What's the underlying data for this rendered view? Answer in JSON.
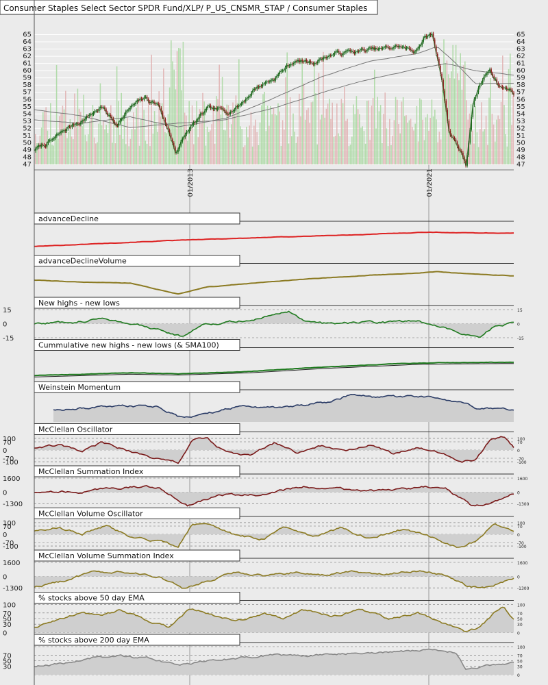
{
  "chart_data": [
    {
      "type": "line",
      "id": "price",
      "title": "Consumer Staples Select Sector SPDR Fund/XLP/ P_US_CNSMR_STAP / Consumer Staples",
      "ylim": [
        47,
        66
      ],
      "ticks": [
        47,
        48,
        49,
        50,
        51,
        52,
        53,
        54,
        55,
        56,
        57,
        58,
        59,
        60,
        61,
        62,
        63,
        64,
        65
      ],
      "x_labels": [
        "01/2013",
        "01/2021"
      ],
      "series": [
        {
          "role": "price",
          "color": "#226622",
          "points": [
            [
              0,
              49.0
            ],
            [
              0.04,
              50.4
            ],
            [
              0.07,
              52.0
            ],
            [
              0.1,
              53.2
            ],
            [
              0.14,
              55.0
            ],
            [
              0.17,
              52.6
            ],
            [
              0.2,
              54.8
            ],
            [
              0.23,
              56.1
            ],
            [
              0.26,
              55.2
            ],
            [
              0.295,
              48.8
            ],
            [
              0.32,
              51.6
            ],
            [
              0.36,
              54.5
            ],
            [
              0.4,
              54.3
            ],
            [
              0.43,
              55.4
            ],
            [
              0.46,
              57.6
            ],
            [
              0.5,
              59.0
            ],
            [
              0.54,
              61.3
            ],
            [
              0.58,
              61.2
            ],
            [
              0.62,
              62.3
            ],
            [
              0.66,
              62.6
            ],
            [
              0.7,
              62.8
            ],
            [
              0.73,
              62.9
            ],
            [
              0.76,
              63.4
            ],
            [
              0.79,
              62.6
            ],
            [
              0.815,
              64.6
            ],
            [
              0.83,
              65.0
            ],
            [
              0.85,
              59.0
            ],
            [
              0.865,
              51.5
            ],
            [
              0.88,
              50.2
            ],
            [
              0.9,
              47.0
            ],
            [
              0.915,
              55.0
            ],
            [
              0.93,
              58.0
            ],
            [
              0.95,
              60.3
            ],
            [
              0.97,
              58.0
            ],
            [
              1.0,
              57.0
            ]
          ]
        },
        {
          "role": "ema-short",
          "color": "#777777",
          "points": [
            [
              0,
              53.2
            ],
            [
              0.1,
              52.7
            ],
            [
              0.2,
              53.6
            ],
            [
              0.3,
              52.2
            ],
            [
              0.4,
              53.4
            ],
            [
              0.5,
              56.2
            ],
            [
              0.6,
              59.2
            ],
            [
              0.7,
              61.3
            ],
            [
              0.8,
              62.4
            ],
            [
              0.84,
              63.4
            ],
            [
              0.88,
              61.0
            ],
            [
              0.92,
              58.2
            ],
            [
              1.0,
              58.3
            ]
          ]
        },
        {
          "role": "ema-long",
          "color": "#777777",
          "points": [
            [
              0,
              54.6
            ],
            [
              0.1,
              53.7
            ],
            [
              0.2,
              52.1
            ],
            [
              0.3,
              52.7
            ],
            [
              0.4,
              53.2
            ],
            [
              0.5,
              54.8
            ],
            [
              0.6,
              57.0
            ],
            [
              0.7,
              58.8
            ],
            [
              0.8,
              60.3
            ],
            [
              0.86,
              61.0
            ],
            [
              0.92,
              60.0
            ],
            [
              1.0,
              59.4
            ]
          ]
        }
      ]
    },
    {
      "type": "line",
      "id": "advanceDecline",
      "title": "advanceDecline",
      "color": "#dd2222",
      "points": [
        [
          0,
          0.25
        ],
        [
          0.2,
          0.4
        ],
        [
          0.32,
          0.48
        ],
        [
          0.5,
          0.58
        ],
        [
          0.7,
          0.68
        ],
        [
          0.82,
          0.76
        ],
        [
          0.88,
          0.74
        ],
        [
          1.0,
          0.72
        ]
      ]
    },
    {
      "type": "line",
      "id": "advanceDeclineVolume",
      "title": "advanceDeclineVolume",
      "color": "#8b7a22",
      "points": [
        [
          0,
          0.55
        ],
        [
          0.1,
          0.48
        ],
        [
          0.2,
          0.45
        ],
        [
          0.3,
          0.05
        ],
        [
          0.36,
          0.3
        ],
        [
          0.5,
          0.5
        ],
        [
          0.6,
          0.62
        ],
        [
          0.7,
          0.72
        ],
        [
          0.8,
          0.8
        ],
        [
          0.84,
          0.85
        ],
        [
          0.9,
          0.78
        ],
        [
          1.0,
          0.7
        ]
      ]
    },
    {
      "type": "area",
      "id": "newHighsLows",
      "title": "New highs - new lows",
      "color": "#1e7a1e",
      "ylim": [
        -15,
        15
      ],
      "left_ticks": [
        "15",
        "0",
        "-15"
      ],
      "right_ticks": [
        "15",
        "0",
        "-15"
      ],
      "points": [
        [
          0,
          0
        ],
        [
          0.1,
          3
        ],
        [
          0.15,
          6
        ],
        [
          0.2,
          0
        ],
        [
          0.27,
          -8
        ],
        [
          0.31,
          -14
        ],
        [
          0.35,
          0
        ],
        [
          0.45,
          3
        ],
        [
          0.53,
          14
        ],
        [
          0.56,
          4
        ],
        [
          0.6,
          0
        ],
        [
          0.7,
          1
        ],
        [
          0.8,
          3
        ],
        [
          0.88,
          -8
        ],
        [
          0.93,
          -15
        ],
        [
          0.96,
          -2
        ],
        [
          1.0,
          0
        ]
      ]
    },
    {
      "type": "line",
      "id": "cumNewHighsLows",
      "title": "Cummulative new highs - new lows (& SMA100)",
      "color": "#1e7a1e",
      "points": [
        [
          0,
          0.15
        ],
        [
          0.2,
          0.25
        ],
        [
          0.3,
          0.22
        ],
        [
          0.45,
          0.3
        ],
        [
          0.6,
          0.45
        ],
        [
          0.8,
          0.6
        ],
        [
          0.9,
          0.62
        ],
        [
          1.0,
          0.63
        ]
      ]
    },
    {
      "type": "area",
      "id": "weinsteinMomentum",
      "title": "Weinstein Momentum",
      "color": "#2b3c66",
      "points": [
        [
          0.04,
          0.45
        ],
        [
          0.1,
          0.5
        ],
        [
          0.2,
          0.55
        ],
        [
          0.26,
          0.55
        ],
        [
          0.3,
          0.2
        ],
        [
          0.36,
          0.3
        ],
        [
          0.44,
          0.6
        ],
        [
          0.5,
          0.5
        ],
        [
          0.62,
          0.72
        ],
        [
          0.66,
          0.98
        ],
        [
          0.72,
          0.85
        ],
        [
          0.82,
          0.9
        ],
        [
          0.9,
          0.62
        ],
        [
          0.93,
          0.45
        ],
        [
          1.0,
          0.45
        ]
      ]
    },
    {
      "type": "area",
      "id": "mcclellanOscillator",
      "title": "McClellan Oscillator",
      "color": "#7a1a1a",
      "ylim": [
        -120,
        120
      ],
      "left_ticks": [
        "100",
        "70",
        "0",
        "-70",
        "-100"
      ],
      "right_ticks": [
        "100",
        "70",
        "0",
        "-70",
        "-100"
      ],
      "points": [
        [
          0,
          20
        ],
        [
          0.05,
          40
        ],
        [
          0.1,
          -20
        ],
        [
          0.14,
          60
        ],
        [
          0.2,
          -10
        ],
        [
          0.26,
          -80
        ],
        [
          0.3,
          -110
        ],
        [
          0.33,
          80
        ],
        [
          0.36,
          100
        ],
        [
          0.4,
          -20
        ],
        [
          0.45,
          -50
        ],
        [
          0.5,
          60
        ],
        [
          0.55,
          -30
        ],
        [
          0.6,
          40
        ],
        [
          0.65,
          -20
        ],
        [
          0.7,
          50
        ],
        [
          0.75,
          -40
        ],
        [
          0.8,
          30
        ],
        [
          0.85,
          -20
        ],
        [
          0.89,
          -100
        ],
        [
          0.92,
          -80
        ],
        [
          0.95,
          80
        ],
        [
          0.98,
          110
        ],
        [
          1.0,
          20
        ]
      ]
    },
    {
      "type": "area",
      "id": "mcclellanSummation",
      "title": "McClellan Summation Index",
      "color": "#7a1a1a",
      "ylim": [
        -1600,
        1600
      ],
      "left_ticks": [
        "1600",
        "0",
        "-1300"
      ],
      "right_ticks": [
        "1600",
        "0",
        "-1300"
      ],
      "points": [
        [
          0,
          0
        ],
        [
          0.1,
          100
        ],
        [
          0.2,
          600
        ],
        [
          0.26,
          500
        ],
        [
          0.32,
          -1500
        ],
        [
          0.38,
          -300
        ],
        [
          0.48,
          -300
        ],
        [
          0.56,
          700
        ],
        [
          0.65,
          300
        ],
        [
          0.74,
          100
        ],
        [
          0.82,
          600
        ],
        [
          0.86,
          300
        ],
        [
          0.91,
          -1500
        ],
        [
          0.95,
          -1300
        ],
        [
          1.0,
          -100
        ]
      ]
    },
    {
      "type": "area",
      "id": "mcclellanVolumeOscillator",
      "title": "McClellan Volume Oscillator",
      "color": "#8b7a22",
      "ylim": [
        -120,
        120
      ],
      "left_ticks": [
        "100",
        "70",
        "0",
        "-70",
        "-100"
      ],
      "right_ticks": [
        "100",
        "70",
        "0",
        "-70",
        "-100"
      ],
      "points": [
        [
          0,
          30
        ],
        [
          0.05,
          60
        ],
        [
          0.1,
          10
        ],
        [
          0.15,
          70
        ],
        [
          0.2,
          -20
        ],
        [
          0.26,
          -60
        ],
        [
          0.3,
          -110
        ],
        [
          0.33,
          90
        ],
        [
          0.36,
          100
        ],
        [
          0.42,
          -10
        ],
        [
          0.48,
          -40
        ],
        [
          0.52,
          60
        ],
        [
          0.58,
          -20
        ],
        [
          0.64,
          50
        ],
        [
          0.7,
          -30
        ],
        [
          0.76,
          40
        ],
        [
          0.82,
          -10
        ],
        [
          0.88,
          -110
        ],
        [
          0.92,
          -60
        ],
        [
          0.96,
          100
        ],
        [
          1.0,
          10
        ]
      ]
    },
    {
      "type": "area",
      "id": "mcclellanVolumeSummation",
      "title": "McClellan Volume Summation Index",
      "color": "#8b7a22",
      "ylim": [
        -1600,
        1600
      ],
      "left_ticks": [
        "1600",
        "0",
        "-1300"
      ],
      "right_ticks": [
        "1600",
        "0",
        "-1300"
      ],
      "points": [
        [
          0,
          -1200
        ],
        [
          0.06,
          -500
        ],
        [
          0.12,
          400
        ],
        [
          0.2,
          400
        ],
        [
          0.26,
          0
        ],
        [
          0.31,
          -1400
        ],
        [
          0.36,
          -600
        ],
        [
          0.42,
          500
        ],
        [
          0.48,
          100
        ],
        [
          0.54,
          500
        ],
        [
          0.6,
          200
        ],
        [
          0.66,
          500
        ],
        [
          0.72,
          300
        ],
        [
          0.8,
          700
        ],
        [
          0.86,
          200
        ],
        [
          0.9,
          -1000
        ],
        [
          0.94,
          -1300
        ],
        [
          1.0,
          -200
        ]
      ]
    },
    {
      "type": "area",
      "id": "pctAbove50EMA",
      "title": "% stocks above 50 day EMA",
      "color": "#8b7a22",
      "ylim": [
        0,
        100
      ],
      "left_ticks": [
        "100",
        "70",
        "50",
        "30",
        "0"
      ],
      "right_ticks": [
        "100",
        "70",
        "50",
        "30",
        "0"
      ],
      "points": [
        [
          0,
          20
        ],
        [
          0.05,
          50
        ],
        [
          0.1,
          70
        ],
        [
          0.14,
          60
        ],
        [
          0.18,
          80
        ],
        [
          0.24,
          40
        ],
        [
          0.28,
          20
        ],
        [
          0.32,
          80
        ],
        [
          0.36,
          70
        ],
        [
          0.42,
          40
        ],
        [
          0.48,
          70
        ],
        [
          0.52,
          50
        ],
        [
          0.56,
          80
        ],
        [
          0.62,
          60
        ],
        [
          0.68,
          80
        ],
        [
          0.74,
          50
        ],
        [
          0.8,
          70
        ],
        [
          0.86,
          30
        ],
        [
          0.9,
          0
        ],
        [
          0.93,
          20
        ],
        [
          0.96,
          70
        ],
        [
          0.98,
          90
        ],
        [
          1.0,
          50
        ]
      ]
    },
    {
      "type": "area",
      "id": "pctAbove200EMA",
      "title": "% stocks above 200 day EMA",
      "color": "#888888",
      "ylim": [
        0,
        100
      ],
      "left_ticks": [
        "70",
        "50",
        "30"
      ],
      "right_ticks": [
        "100",
        "70",
        "50",
        "30",
        "0"
      ],
      "points": [
        [
          0,
          30
        ],
        [
          0.06,
          40
        ],
        [
          0.12,
          60
        ],
        [
          0.18,
          65
        ],
        [
          0.24,
          60
        ],
        [
          0.3,
          30
        ],
        [
          0.36,
          50
        ],
        [
          0.44,
          60
        ],
        [
          0.5,
          70
        ],
        [
          0.56,
          65
        ],
        [
          0.62,
          75
        ],
        [
          0.68,
          80
        ],
        [
          0.74,
          80
        ],
        [
          0.8,
          85
        ],
        [
          0.84,
          90
        ],
        [
          0.88,
          80
        ],
        [
          0.9,
          20
        ],
        [
          0.93,
          25
        ],
        [
          0.96,
          35
        ],
        [
          1.0,
          40
        ]
      ]
    }
  ]
}
